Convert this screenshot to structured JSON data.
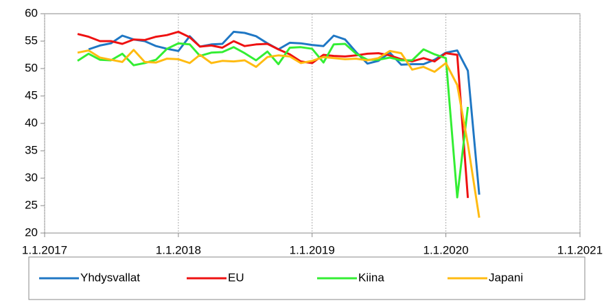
{
  "chart_data": {
    "type": "line",
    "x": [
      "2017-04-01",
      "2017-05-01",
      "2017-06-01",
      "2017-07-01",
      "2017-08-01",
      "2017-09-01",
      "2017-10-01",
      "2017-11-01",
      "2017-12-01",
      "2018-01-01",
      "2018-02-01",
      "2018-03-01",
      "2018-04-01",
      "2018-05-01",
      "2018-06-01",
      "2018-07-01",
      "2018-08-01",
      "2018-09-01",
      "2018-10-01",
      "2018-11-01",
      "2018-12-01",
      "2019-01-01",
      "2019-02-01",
      "2019-03-01",
      "2019-04-01",
      "2019-05-01",
      "2019-06-01",
      "2019-07-01",
      "2019-08-01",
      "2019-09-01",
      "2019-10-01",
      "2019-11-01",
      "2019-12-01",
      "2020-01-01",
      "2020-02-01",
      "2020-03-01",
      "2020-04-01"
    ],
    "series": [
      {
        "name": "Yhdysvallat",
        "color": "#1f77c4",
        "values": [
          null,
          53.5,
          54.2,
          54.6,
          56.0,
          55.3,
          55.0,
          54.1,
          53.6,
          53.2,
          55.9,
          54.0,
          54.4,
          54.5,
          56.7,
          56.5,
          55.9,
          54.6,
          53.5,
          54.7,
          54.6,
          54.3,
          54.1,
          56.0,
          55.3,
          53.0,
          50.9,
          51.4,
          52.9,
          50.7,
          50.8,
          50.8,
          51.6,
          52.9,
          53.3,
          49.6,
          27.0
        ]
      },
      {
        "name": "EU",
        "color": "#ee1111",
        "values": [
          56.3,
          55.8,
          55.0,
          55.0,
          54.5,
          55.3,
          55.2,
          55.8,
          56.1,
          56.7,
          55.7,
          54.0,
          54.2,
          53.8,
          55.0,
          54.1,
          54.4,
          54.5,
          53.5,
          52.6,
          51.3,
          51.0,
          52.5,
          52.3,
          52.2,
          52.4,
          52.7,
          52.8,
          52.4,
          51.7,
          51.3,
          51.9,
          51.3,
          52.8,
          52.5,
          26.4,
          null
        ]
      },
      {
        "name": "Kiina",
        "color": "#33ee33",
        "values": [
          51.4,
          52.7,
          51.6,
          51.5,
          52.7,
          50.6,
          51.0,
          51.6,
          53.6,
          54.6,
          54.4,
          52.3,
          52.9,
          53.0,
          53.9,
          52.8,
          51.5,
          53.1,
          50.8,
          53.8,
          53.9,
          53.6,
          51.1,
          54.4,
          54.5,
          52.7,
          51.6,
          51.6,
          52.0,
          51.5,
          51.5,
          53.5,
          52.6,
          51.9,
          26.5,
          43.0,
          null
        ]
      },
      {
        "name": "Japani",
        "color": "#ffbb11",
        "values": [
          52.9,
          53.3,
          52.0,
          51.6,
          51.2,
          53.4,
          51.2,
          51.1,
          51.8,
          51.7,
          51.0,
          52.5,
          51.0,
          51.4,
          51.3,
          51.5,
          50.3,
          52.1,
          52.4,
          52.2,
          51.0,
          51.4,
          52.1,
          51.9,
          51.7,
          51.8,
          51.5,
          51.9,
          53.2,
          52.8,
          49.8,
          50.3,
          49.4,
          51.0,
          47.0,
          36.2,
          22.8
        ]
      }
    ],
    "xlim": [
      "2017-01-01",
      "2021-01-01"
    ],
    "xticks": [
      {
        "value": "2017-01-01",
        "label": "1.1.2017"
      },
      {
        "value": "2018-01-01",
        "label": "1.1.2018"
      },
      {
        "value": "2019-01-01",
        "label": "1.1.2019"
      },
      {
        "value": "2020-01-01",
        "label": "1.1.2020"
      },
      {
        "value": "2021-01-01",
        "label": "1.1.2021"
      }
    ],
    "ylim": [
      20,
      60
    ],
    "yticks": [
      20,
      25,
      30,
      35,
      40,
      45,
      50,
      55,
      60
    ],
    "grid": "x",
    "legend": "bottom"
  }
}
